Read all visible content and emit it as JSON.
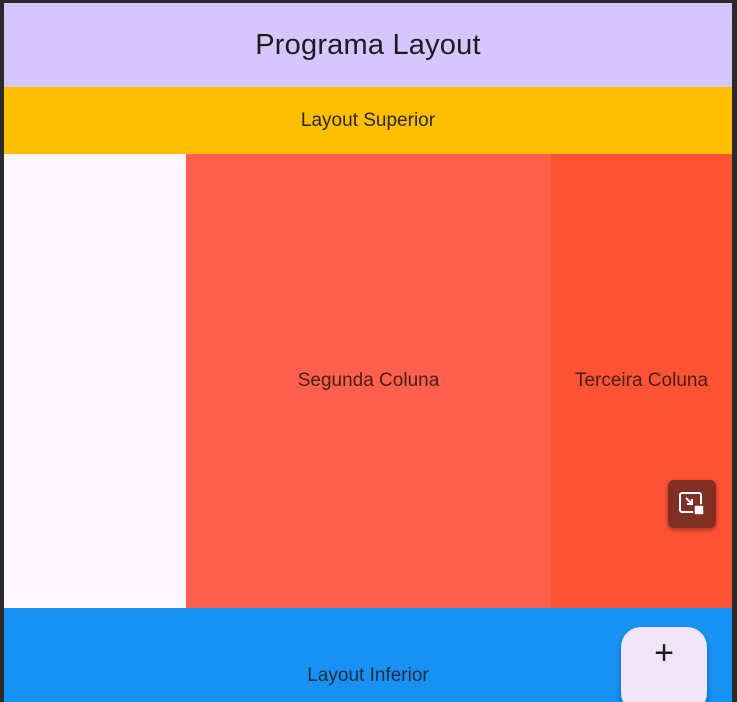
{
  "appbar": {
    "title": "Programa Layout"
  },
  "top_layout": {
    "label": "Layout Superior"
  },
  "columns": {
    "second_label": "Segunda Coluna",
    "third_label": "Terceira Coluna"
  },
  "bottom_layout": {
    "label": "Layout Inferior"
  },
  "fab": {
    "symbol": "+",
    "icon": "plus-icon"
  },
  "pip": {
    "icon": "picture-in-picture-icon"
  },
  "colors": {
    "appbar": "#d5c6fd",
    "top_layout": "#ffbe00",
    "first_column": "#fdf7fd",
    "second_column": "#fe604d",
    "third_column": "#fe5235",
    "bottom_layout": "#1891f4",
    "fab": "#efe5f7"
  }
}
